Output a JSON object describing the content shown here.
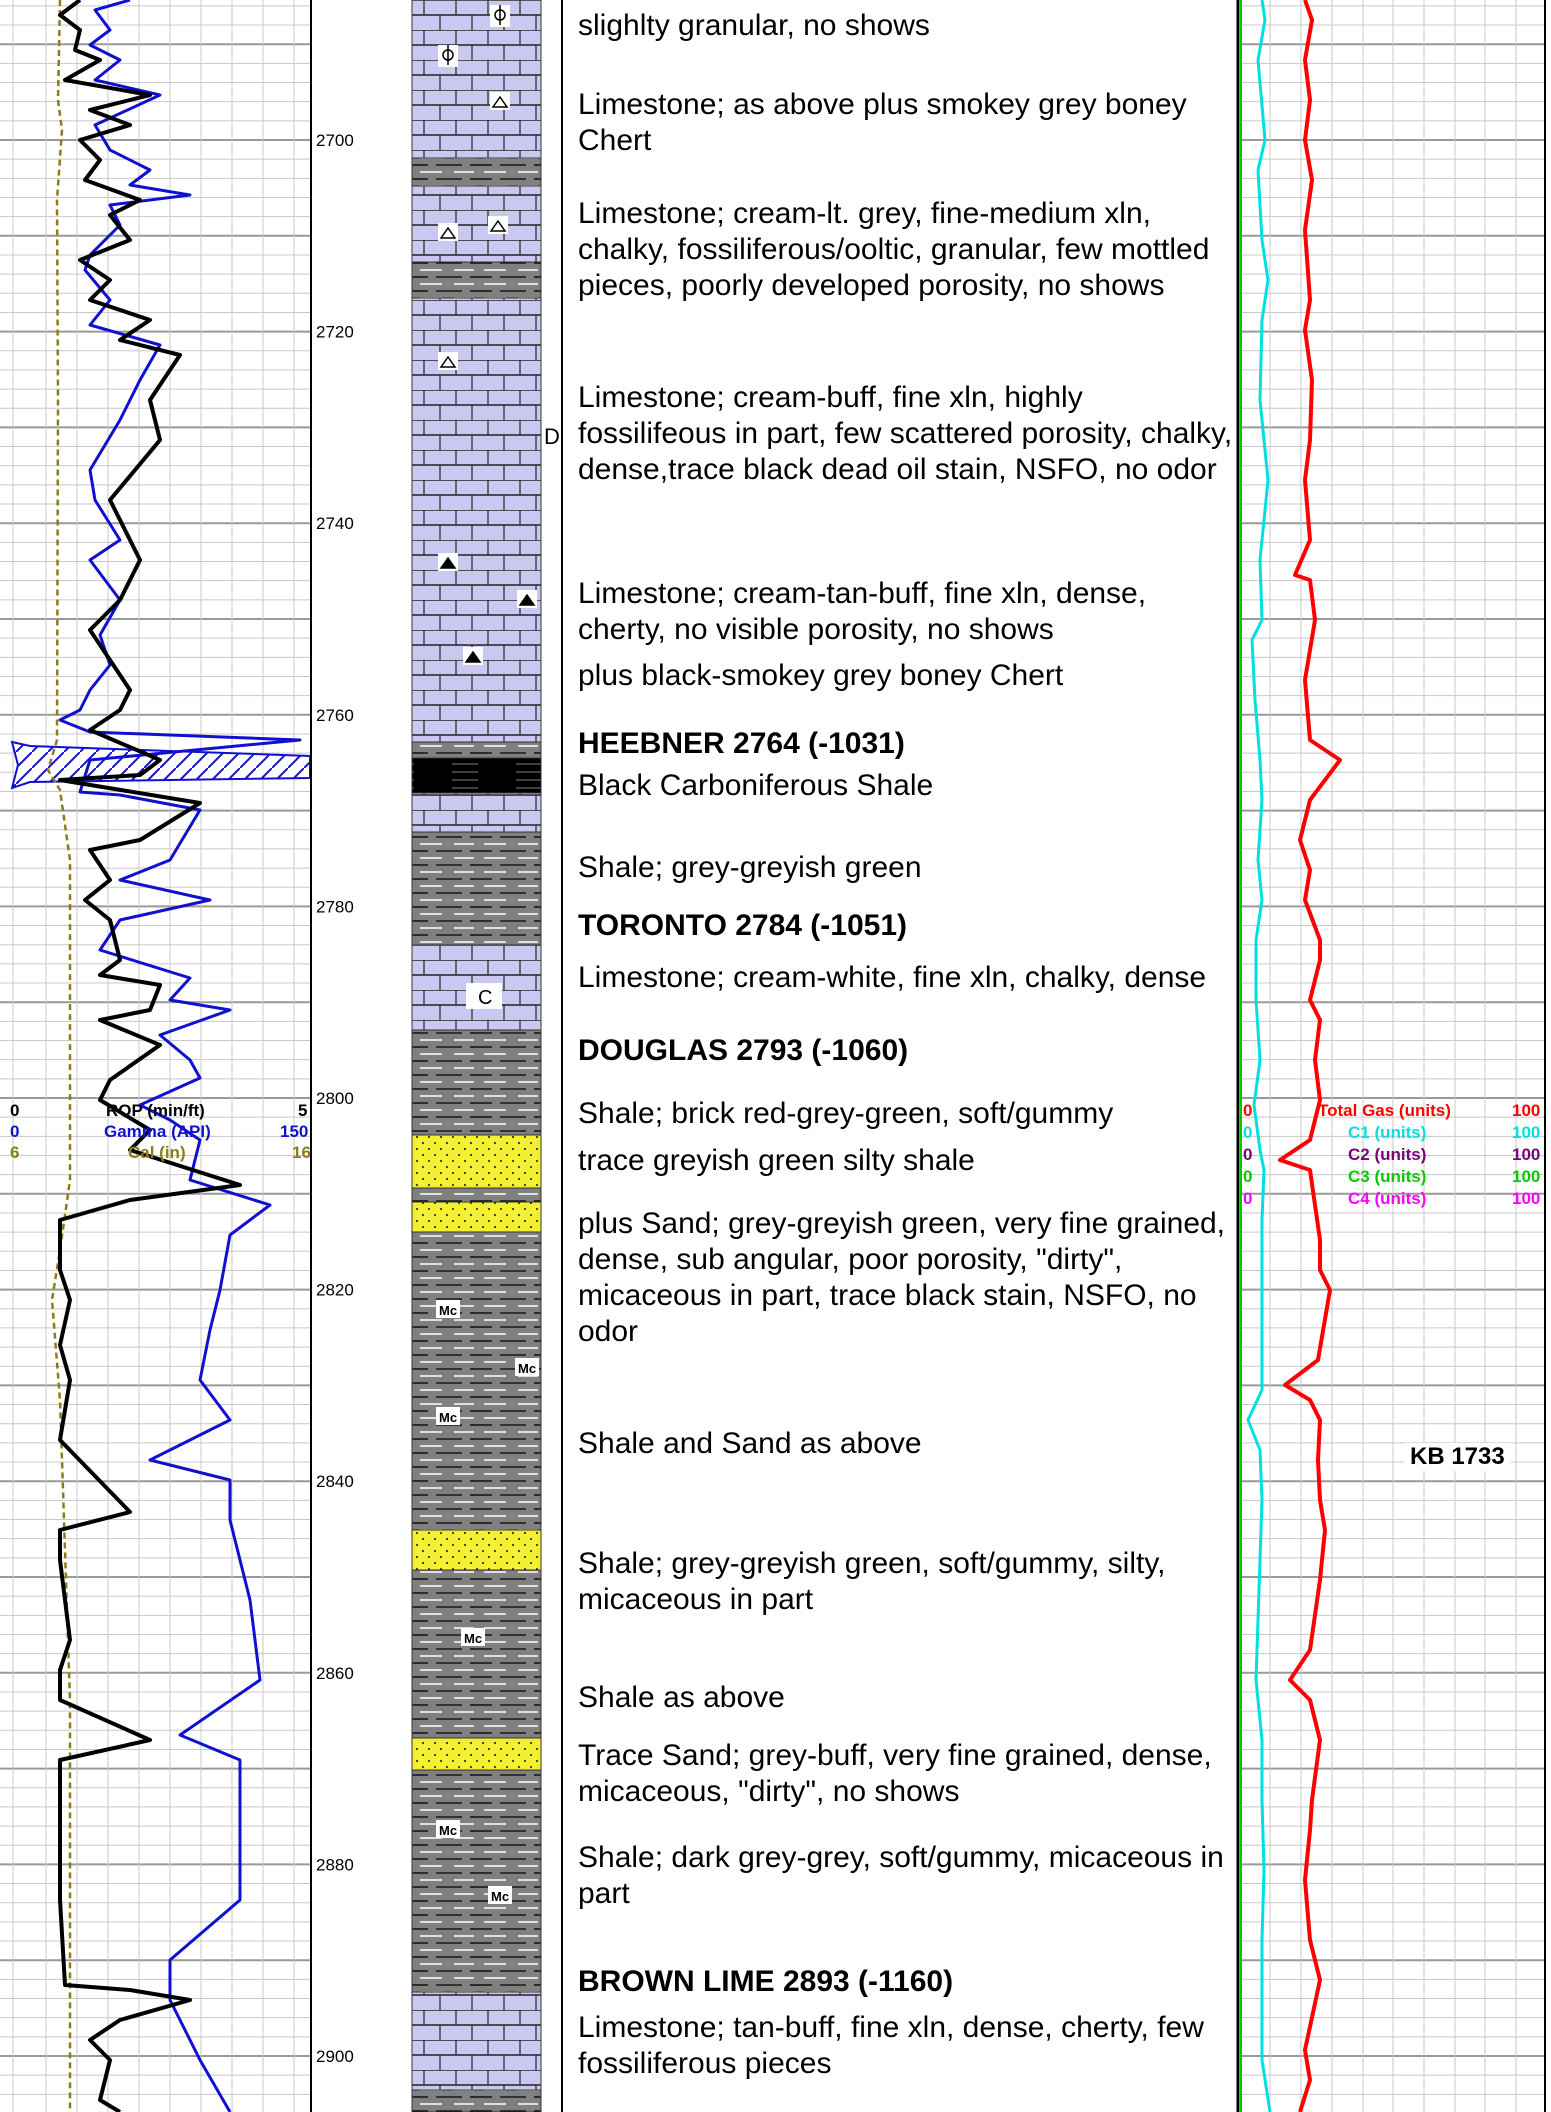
{
  "depth_track": {
    "depths": [
      "2700",
      "2720",
      "2740",
      "2760",
      "2780",
      "2800",
      "2820",
      "2840",
      "2860",
      "2880",
      "2900"
    ]
  },
  "left_scale_header": {
    "rows": [
      {
        "min": "0",
        "label": "ROP (min/ft)",
        "max": "5",
        "color": "#000000"
      },
      {
        "min": "0",
        "label": "Gamma (API)",
        "max": "150",
        "color": "#1010d0"
      },
      {
        "min": "6",
        "label": "Cal (in)",
        "max": "16",
        "color": "#8b7d1a"
      }
    ]
  },
  "gas_scale_header": {
    "rows": [
      {
        "min": "0",
        "label": "Total Gas (units)",
        "max": "100",
        "color": "#ff0000"
      },
      {
        "min": "0",
        "label": "C1 (units)",
        "max": "100",
        "color": "#00e0e0"
      },
      {
        "min": "0",
        "label": "C2 (units)",
        "max": "100",
        "color": "#7a007a"
      },
      {
        "min": "0",
        "label": "C3 (units)",
        "max": "100",
        "color": "#00cc00"
      },
      {
        "min": "0",
        "label": "C4 (units)",
        "max": "100",
        "color": "#ff00ff"
      }
    ]
  },
  "lithology_marker": "D",
  "kb_label": "KB 1733",
  "descriptions": [
    {
      "text": "slighlty granular, no shows"
    },
    {
      "text": "Limestone; as above plus smokey grey boney Chert"
    },
    {
      "text": "Limestone; cream-lt. grey, fine-medium xln, chalky, fossiliferous/ooltic, granular, few mottled pieces, poorly developed porosity, no shows"
    },
    {
      "text": "Limestone; cream-buff, fine xln, highly fossilifeous in part, few scattered porosity, chalky, dense,trace black dead oil stain, NSFO, no odor"
    },
    {
      "text": "Limestone; cream-tan-buff, fine xln, dense, cherty, no visible porosity, no shows"
    },
    {
      "text": "plus black-smokey grey boney Chert"
    },
    {
      "text": "HEEBNER 2764 (-1031)",
      "bold": true
    },
    {
      "text": "Black Carboniferous Shale"
    },
    {
      "text": "Shale; grey-greyish green"
    },
    {
      "text": "TORONTO 2784 (-1051)",
      "bold": true
    },
    {
      "text": "Limestone; cream-white, fine xln, chalky, dense"
    },
    {
      "text": "DOUGLAS 2793 (-1060)",
      "bold": true
    },
    {
      "text": "Shale; brick red-grey-green, soft/gummy"
    },
    {
      "text": "trace greyish green silty shale"
    },
    {
      "text": "plus Sand; grey-greyish green, very fine grained, dense, sub angular, poor porosity, \"dirty\", micaceous in part, trace black stain, NSFO, no odor"
    },
    {
      "text": "Shale and Sand as above"
    },
    {
      "text": "Shale; grey-greyish green, soft/gummy, silty, micaceous in part"
    },
    {
      "text": "Shale as above"
    },
    {
      "text": "Trace Sand; grey-buff, very fine grained, dense, micaceous, \"dirty\", no shows"
    },
    {
      "text": "Shale; dark grey-grey, soft/gummy, micaceous in part"
    },
    {
      "text": "BROWN LIME 2893 (-1160)",
      "bold": true
    },
    {
      "text": "Limestone; tan-buff, fine xln, dense, cherty, few fossiliferous pieces"
    }
  ],
  "lith_symbols": {
    "mica": "Mc",
    "chalk": "C"
  }
}
